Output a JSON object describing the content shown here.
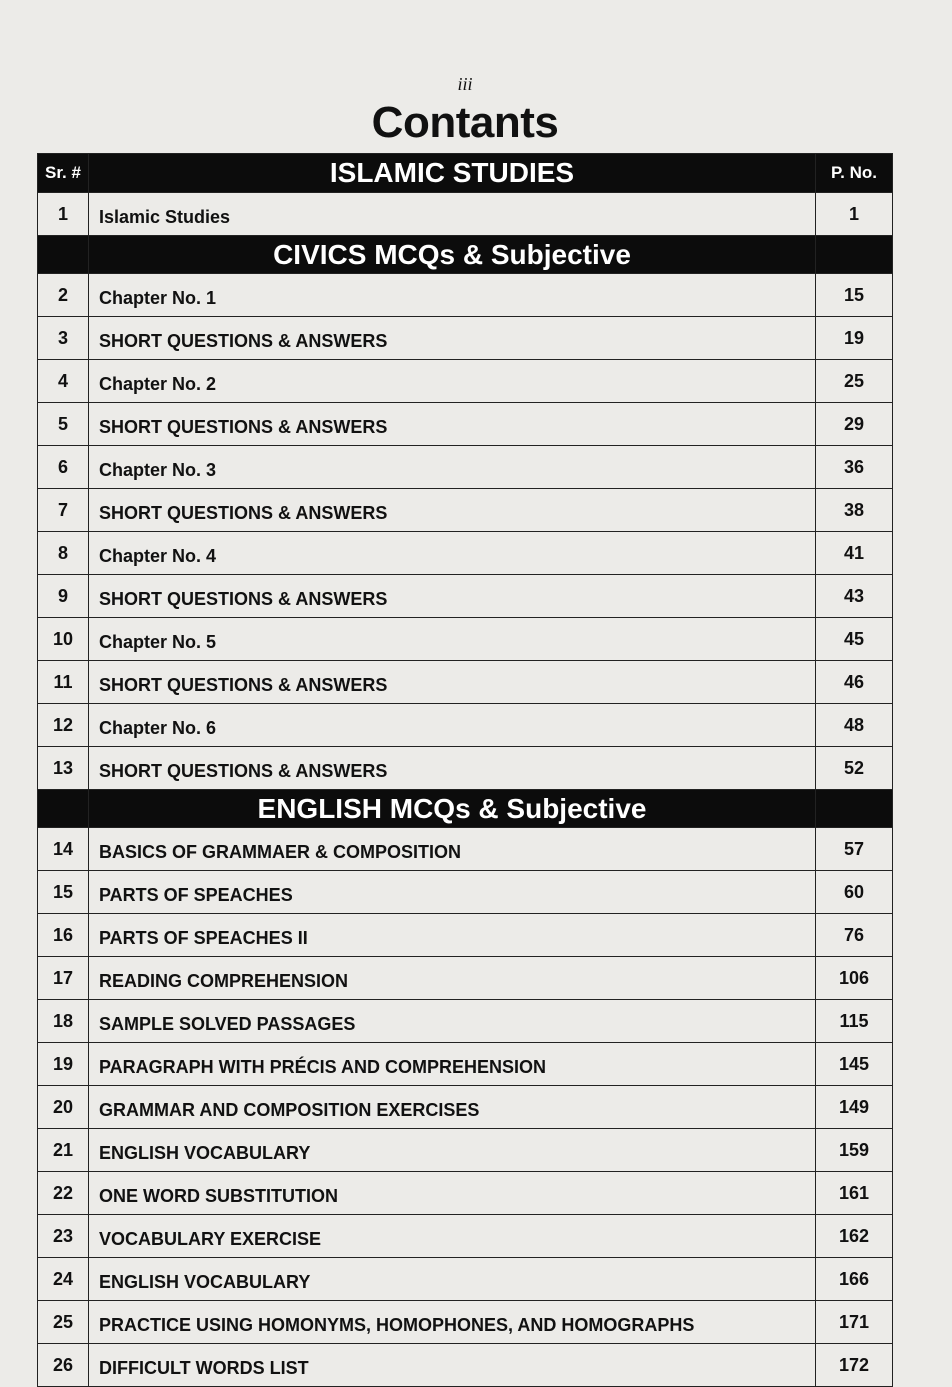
{
  "page_number": "iii",
  "title": "Contants",
  "header": {
    "sr": "Sr. #",
    "pno": "P. No."
  },
  "sections": [
    {
      "heading": "ISLAMIC STUDIES",
      "rows": [
        {
          "sr": "1",
          "title": "Islamic Studies",
          "page": "1"
        }
      ]
    },
    {
      "heading": "CIVICS MCQs & Subjective",
      "rows": [
        {
          "sr": "2",
          "title": "Chapter No. 1",
          "page": "15"
        },
        {
          "sr": "3",
          "title": "SHORT QUESTIONS & ANSWERS",
          "page": "19"
        },
        {
          "sr": "4",
          "title": "Chapter No. 2",
          "page": "25"
        },
        {
          "sr": "5",
          "title": "SHORT QUESTIONS & ANSWERS",
          "page": "29"
        },
        {
          "sr": "6",
          "title": "Chapter No. 3",
          "page": "36"
        },
        {
          "sr": "7",
          "title": "SHORT QUESTIONS & ANSWERS",
          "page": "38"
        },
        {
          "sr": "8",
          "title": "Chapter No. 4",
          "page": "41"
        },
        {
          "sr": "9",
          "title": "SHORT QUESTIONS & ANSWERS",
          "page": "43"
        },
        {
          "sr": "10",
          "title": "Chapter No. 5",
          "page": "45"
        },
        {
          "sr": "11",
          "title": "SHORT QUESTIONS & ANSWERS",
          "page": "46"
        },
        {
          "sr": "12",
          "title": "Chapter No. 6",
          "page": "48"
        },
        {
          "sr": "13",
          "title": "SHORT QUESTIONS & ANSWERS",
          "page": "52"
        }
      ]
    },
    {
      "heading": "ENGLISH MCQs & Subjective",
      "rows": [
        {
          "sr": "14",
          "title": "BASICS OF GRAMMAER & COMPOSITION",
          "page": "57"
        },
        {
          "sr": "15",
          "title": "PARTS OF SPEACHES",
          "page": "60"
        },
        {
          "sr": "16",
          "title": "PARTS OF SPEACHES II",
          "page": "76"
        },
        {
          "sr": "17",
          "title": "READING COMPREHENSION",
          "page": "106"
        },
        {
          "sr": "18",
          "title": "SAMPLE SOLVED PASSAGES",
          "page": "115"
        },
        {
          "sr": "19",
          "title": "PARAGRAPH WITH PRÉCIS AND COMPREHENSION",
          "page": "145"
        },
        {
          "sr": "20",
          "title": "GRAMMAR AND COMPOSITION EXERCISES",
          "page": "149"
        },
        {
          "sr": "21",
          "title": "ENGLISH VOCABULARY",
          "page": "159"
        },
        {
          "sr": "22",
          "title": "ONE WORD SUBSTITUTION",
          "page": "161"
        },
        {
          "sr": "23",
          "title": "VOCABULARY EXERCISE",
          "page": "162"
        },
        {
          "sr": "24",
          "title": "ENGLISH VOCABULARY",
          "page": "166"
        },
        {
          "sr": "25",
          "title": "PRACTICE USING HOMONYMS, HOMOPHONES, AND HOMOGRAPHS",
          "page": "171"
        },
        {
          "sr": "26",
          "title": "DIFFICULT WORDS LIST",
          "page": "172"
        }
      ]
    }
  ]
}
